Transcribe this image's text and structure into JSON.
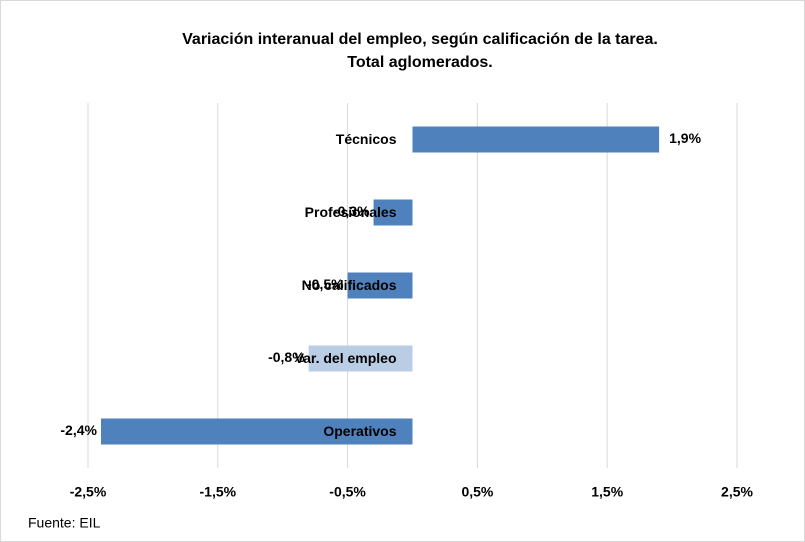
{
  "chart_data": {
    "type": "barh",
    "title": [
      "Variación interanual del empleo, según calificación de la tarea.",
      "Total aglomerados."
    ],
    "categories": [
      "Técnicos",
      "Profesionales",
      "No calificados",
      "Var. del empleo",
      "Operativos"
    ],
    "values": [
      1.9,
      -0.3,
      -0.5,
      -0.8,
      -2.4
    ],
    "value_labels": [
      "1,9%",
      "-0,3%",
      "-0,5%",
      "-0,8%",
      "-2,4%"
    ],
    "colors": [
      "#4f81bd",
      "#4f81bd",
      "#4f81bd",
      "#b9cde5",
      "#4f81bd"
    ],
    "xlim": [
      -2.5,
      2.5
    ],
    "xticks": [
      {
        "value": -2.5,
        "label": "-2,5%"
      },
      {
        "value": -1.5,
        "label": "-1,5%"
      },
      {
        "value": -0.5,
        "label": "-0,5%"
      },
      {
        "value": 0.5,
        "label": "0,5%"
      },
      {
        "value": 1.5,
        "label": "1,5%"
      },
      {
        "value": 2.5,
        "label": "2,5%"
      }
    ],
    "grid": true,
    "source": "Fuente: EIL"
  }
}
